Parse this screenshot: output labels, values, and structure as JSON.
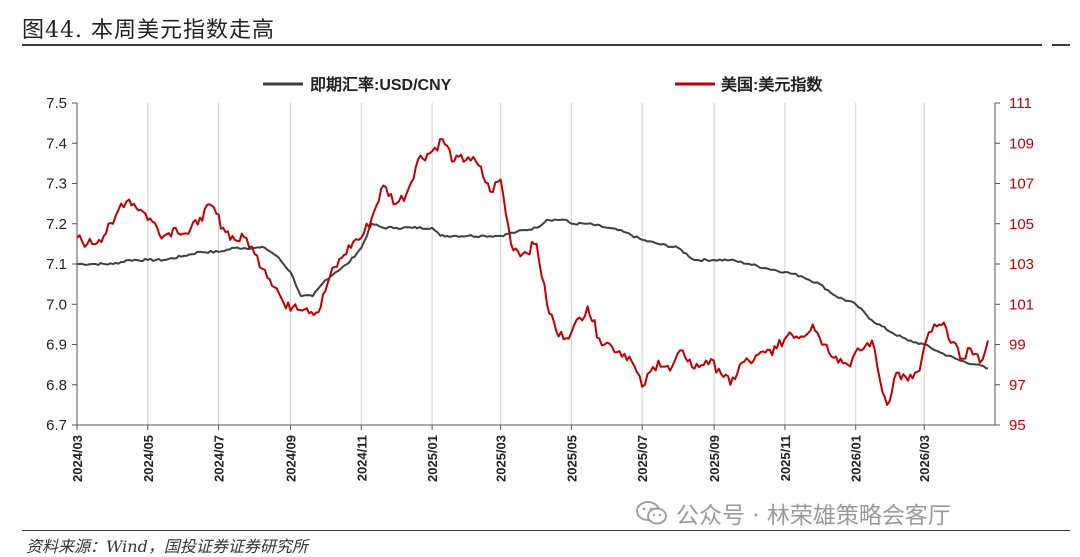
{
  "title": "图44. 本周美元指数走高",
  "source": "资料来源：Wind，国投证券证券研究所",
  "watermark": "公众号 · 林荣雄策略会客厅",
  "colors": {
    "cny": "#3f3f3f",
    "dxy": "#c00000",
    "grid": "#d0d0d0"
  },
  "chart_data": {
    "type": "line",
    "x_ticks": [
      "2024/03",
      "2024/05",
      "2024/07",
      "2024/09",
      "2024/11",
      "2025/01",
      "2025/03",
      "2025/05",
      "2025/07",
      "2025/09",
      "2025/11",
      "2026/01",
      "2026/03"
    ],
    "x_range": [
      "2024-03-01",
      "2026-05-01"
    ],
    "y_left": {
      "ylim": [
        6.7,
        7.5
      ],
      "ticks": [
        "6.7",
        "6.8",
        "6.9",
        "7.0",
        "7.1",
        "7.2",
        "7.3",
        "7.4",
        "7.5"
      ]
    },
    "y_right": {
      "ylim": [
        95,
        111
      ],
      "ticks": [
        "95",
        "97",
        "99",
        "101",
        "103",
        "105",
        "107",
        "109",
        "111"
      ]
    },
    "series": [
      {
        "name": "即期汇率:USD/CNY",
        "axis": "left",
        "points": [
          [
            "2024-03-01",
            7.1
          ],
          [
            "2024-03-15",
            7.1
          ],
          [
            "2024-04-01",
            7.1
          ],
          [
            "2024-04-15",
            7.11
          ],
          [
            "2024-05-01",
            7.11
          ],
          [
            "2024-05-15",
            7.11
          ],
          [
            "2024-06-01",
            7.12
          ],
          [
            "2024-06-15",
            7.13
          ],
          [
            "2024-07-01",
            7.13
          ],
          [
            "2024-07-15",
            7.14
          ],
          [
            "2024-08-01",
            7.14
          ],
          [
            "2024-08-10",
            7.14
          ],
          [
            "2024-08-20",
            7.12
          ],
          [
            "2024-09-01",
            7.08
          ],
          [
            "2024-09-10",
            7.02
          ],
          [
            "2024-09-20",
            7.02
          ],
          [
            "2024-10-01",
            7.06
          ],
          [
            "2024-10-10",
            7.08
          ],
          [
            "2024-10-20",
            7.1
          ],
          [
            "2024-11-01",
            7.14
          ],
          [
            "2024-11-10",
            7.2
          ],
          [
            "2024-11-20",
            7.19
          ],
          [
            "2024-12-01",
            7.19
          ],
          [
            "2024-12-15",
            7.19
          ],
          [
            "2025-01-01",
            7.19
          ],
          [
            "2025-01-08",
            7.17
          ],
          [
            "2025-01-20",
            7.17
          ],
          [
            "2025-02-01",
            7.17
          ],
          [
            "2025-02-15",
            7.17
          ],
          [
            "2025-03-01",
            7.17
          ],
          [
            "2025-03-15",
            7.18
          ],
          [
            "2025-04-01",
            7.19
          ],
          [
            "2025-04-10",
            7.21
          ],
          [
            "2025-04-25",
            7.21
          ],
          [
            "2025-05-01",
            7.2
          ],
          [
            "2025-05-15",
            7.2
          ],
          [
            "2025-06-01",
            7.19
          ],
          [
            "2025-06-15",
            7.18
          ],
          [
            "2025-07-01",
            7.16
          ],
          [
            "2025-07-15",
            7.15
          ],
          [
            "2025-08-01",
            7.14
          ],
          [
            "2025-08-15",
            7.11
          ],
          [
            "2025-09-01",
            7.11
          ],
          [
            "2025-09-15",
            7.11
          ],
          [
            "2025-10-01",
            7.1
          ],
          [
            "2025-10-15",
            7.09
          ],
          [
            "2025-11-01",
            7.08
          ],
          [
            "2025-11-15",
            7.07
          ],
          [
            "2025-12-01",
            7.05
          ],
          [
            "2025-12-15",
            7.02
          ],
          [
            "2026-01-01",
            7.0
          ],
          [
            "2026-01-15",
            6.96
          ],
          [
            "2026-02-01",
            6.93
          ],
          [
            "2026-02-15",
            6.91
          ],
          [
            "2026-03-01",
            6.9
          ],
          [
            "2026-03-15",
            6.88
          ],
          [
            "2026-04-01",
            6.86
          ],
          [
            "2026-04-15",
            6.85
          ],
          [
            "2026-04-25",
            6.84
          ]
        ]
      },
      {
        "name": "美国:美元指数",
        "axis": "right",
        "points": [
          [
            "2024-03-01",
            104.3
          ],
          [
            "2024-03-10",
            104.0
          ],
          [
            "2024-03-20",
            104.2
          ],
          [
            "2024-04-01",
            105.0
          ],
          [
            "2024-04-08",
            106.0
          ],
          [
            "2024-04-15",
            106.2
          ],
          [
            "2024-04-25",
            105.7
          ],
          [
            "2024-05-05",
            105.1
          ],
          [
            "2024-05-15",
            104.4
          ],
          [
            "2024-05-25",
            104.8
          ],
          [
            "2024-06-05",
            104.5
          ],
          [
            "2024-06-15",
            105.3
          ],
          [
            "2024-06-25",
            105.9
          ],
          [
            "2024-07-05",
            104.8
          ],
          [
            "2024-07-15",
            104.2
          ],
          [
            "2024-07-25",
            104.3
          ],
          [
            "2024-08-01",
            103.5
          ],
          [
            "2024-08-10",
            102.7
          ],
          [
            "2024-08-20",
            101.8
          ],
          [
            "2024-08-28",
            100.8
          ],
          [
            "2024-09-05",
            101.0
          ],
          [
            "2024-09-15",
            100.8
          ],
          [
            "2024-09-25",
            100.6
          ],
          [
            "2024-10-05",
            102.4
          ],
          [
            "2024-10-15",
            103.3
          ],
          [
            "2024-10-25",
            104.1
          ],
          [
            "2024-11-01",
            104.3
          ],
          [
            "2024-11-10",
            105.3
          ],
          [
            "2024-11-20",
            106.9
          ],
          [
            "2024-12-01",
            106.0
          ],
          [
            "2024-12-10",
            106.5
          ],
          [
            "2024-12-20",
            108.2
          ],
          [
            "2025-01-01",
            108.6
          ],
          [
            "2025-01-10",
            109.2
          ],
          [
            "2025-01-20",
            108.1
          ],
          [
            "2025-02-01",
            108.3
          ],
          [
            "2025-02-10",
            107.9
          ],
          [
            "2025-02-20",
            106.6
          ],
          [
            "2025-03-01",
            107.2
          ],
          [
            "2025-03-10",
            104.0
          ],
          [
            "2025-03-20",
            103.5
          ],
          [
            "2025-04-01",
            104.0
          ],
          [
            "2025-04-10",
            101.0
          ],
          [
            "2025-04-20",
            99.4
          ],
          [
            "2025-05-01",
            99.6
          ],
          [
            "2025-05-15",
            100.9
          ],
          [
            "2025-05-25",
            99.3
          ],
          [
            "2025-06-05",
            98.9
          ],
          [
            "2025-06-20",
            98.4
          ],
          [
            "2025-07-01",
            96.9
          ],
          [
            "2025-07-15",
            98.2
          ],
          [
            "2025-07-25",
            97.7
          ],
          [
            "2025-08-05",
            98.7
          ],
          [
            "2025-08-15",
            97.8
          ],
          [
            "2025-08-25",
            98.2
          ],
          [
            "2025-09-05",
            97.8
          ],
          [
            "2025-09-15",
            97.0
          ],
          [
            "2025-09-25",
            98.1
          ],
          [
            "2025-10-05",
            98.2
          ],
          [
            "2025-10-15",
            98.6
          ],
          [
            "2025-10-25",
            98.8
          ],
          [
            "2025-11-05",
            99.6
          ],
          [
            "2025-11-15",
            99.4
          ],
          [
            "2025-11-25",
            100.0
          ],
          [
            "2025-12-05",
            99.0
          ],
          [
            "2025-12-15",
            98.4
          ],
          [
            "2025-12-25",
            98.0
          ],
          [
            "2026-01-05",
            98.7
          ],
          [
            "2026-01-15",
            99.2
          ],
          [
            "2026-01-22",
            97.2
          ],
          [
            "2026-01-28",
            96.0
          ],
          [
            "2026-02-05",
            97.6
          ],
          [
            "2026-02-15",
            97.2
          ],
          [
            "2026-02-25",
            97.7
          ],
          [
            "2026-03-05",
            99.6
          ],
          [
            "2026-03-12",
            99.9
          ],
          [
            "2026-03-20",
            99.8
          ],
          [
            "2026-04-01",
            98.3
          ],
          [
            "2026-04-10",
            98.8
          ],
          [
            "2026-04-18",
            98.1
          ],
          [
            "2026-04-25",
            99.2
          ]
        ]
      }
    ],
    "legend_position": "top-center",
    "grid": "vertical"
  }
}
